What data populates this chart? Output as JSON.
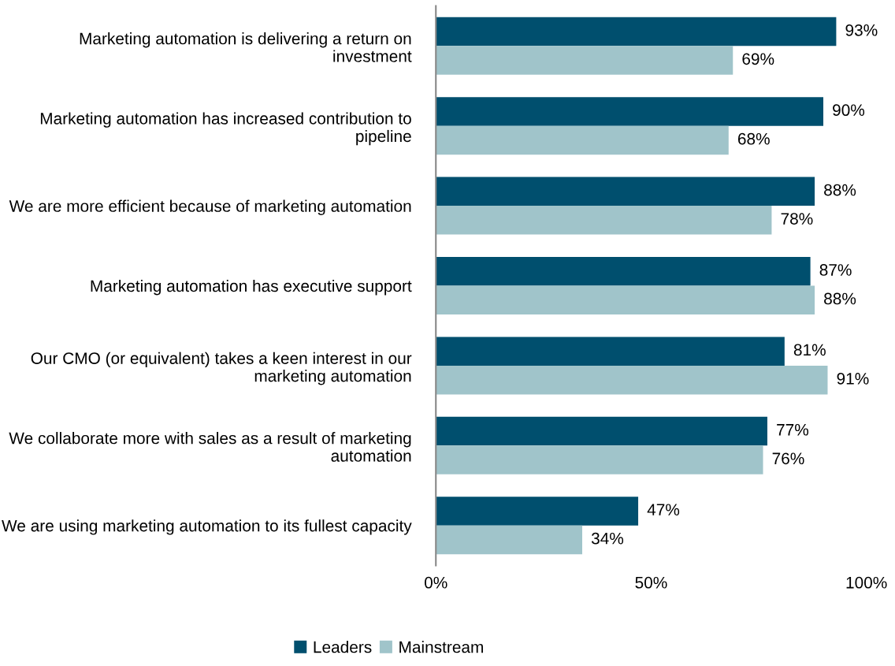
{
  "chart_data": {
    "type": "bar",
    "orientation": "horizontal",
    "categories": [
      "Marketing automation is delivering a return on investment",
      "Marketing automation has increased contribution to pipeline",
      "We are more efficient because of marketing automation",
      "Marketing automation has executive support",
      "Our CMO (or equivalent) takes a keen interest in our marketing automation",
      "We collaborate more with sales as a result of marketing automation",
      "We are using marketing automation to its fullest capacity"
    ],
    "series": [
      {
        "name": "Leaders",
        "color": "#004f6e",
        "values": [
          93,
          90,
          88,
          87,
          81,
          77,
          47
        ],
        "value_labels": [
          "93%",
          "90%",
          "88%",
          "87%",
          "81%",
          "77%",
          "47%"
        ]
      },
      {
        "name": "Mainstream",
        "color": "#a0c4ca",
        "values": [
          69,
          68,
          78,
          88,
          91,
          76,
          34
        ],
        "value_labels": [
          "69%",
          "68%",
          "78%",
          "88%",
          "91%",
          "76%",
          "34%"
        ]
      }
    ],
    "xlim": [
      0,
      100
    ],
    "xticks": [
      {
        "value": 0,
        "label": "0%"
      },
      {
        "value": 50,
        "label": "50%"
      },
      {
        "value": 100,
        "label": "100%"
      }
    ],
    "grid": false,
    "legend": "bottom"
  }
}
